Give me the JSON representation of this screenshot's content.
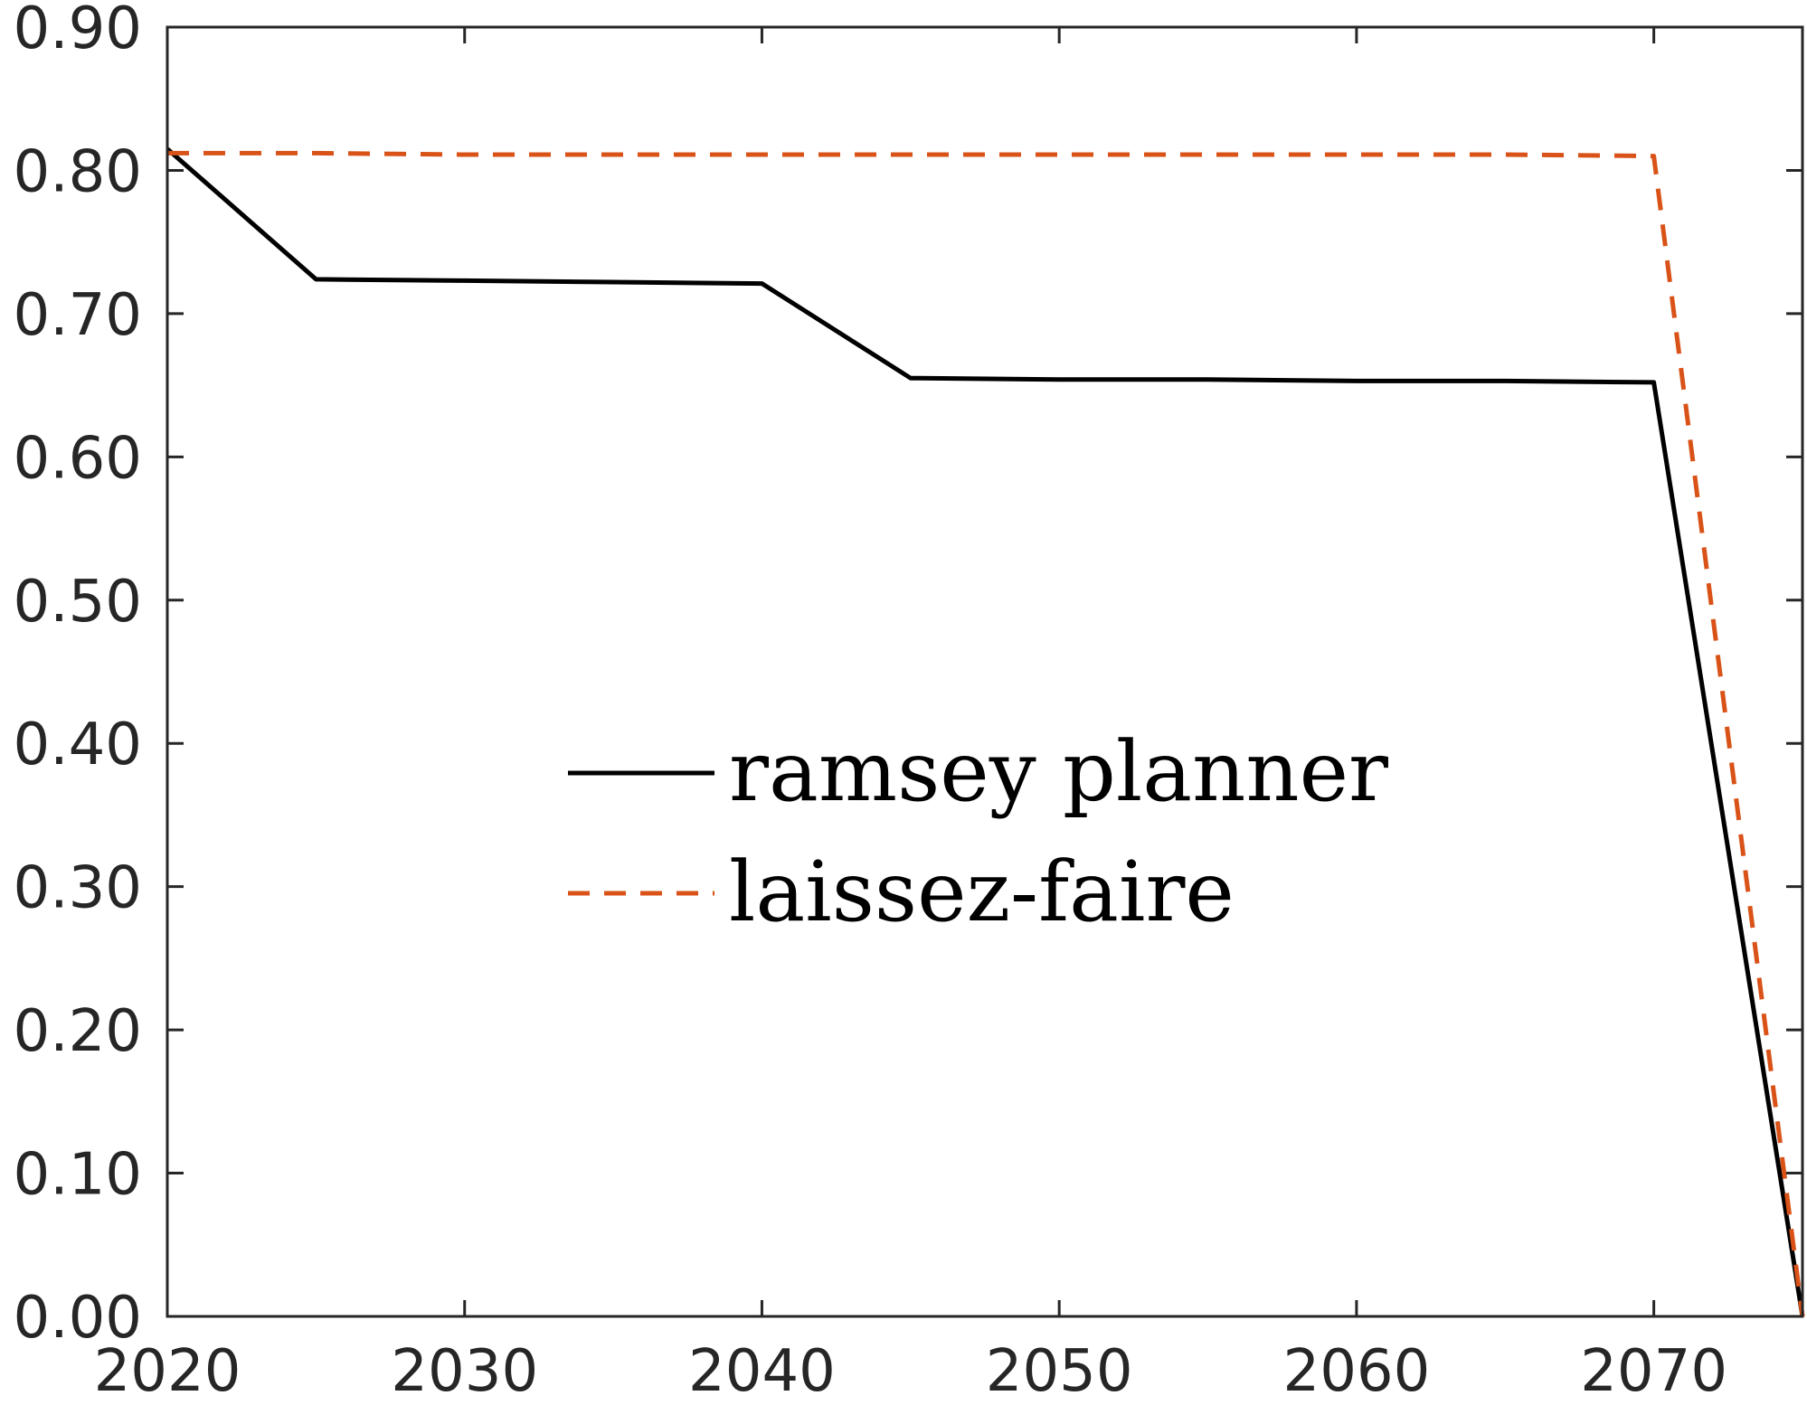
{
  "chart_data": {
    "type": "line",
    "title": "",
    "xlabel": "",
    "ylabel": "",
    "xlim": [
      2020,
      2075
    ],
    "ylim": [
      0,
      0.9
    ],
    "xticks": [
      2020,
      2030,
      2040,
      2050,
      2060,
      2070
    ],
    "xtick_labels": [
      "2020",
      "2030",
      "2040",
      "2050",
      "2060",
      "2070"
    ],
    "yticks": [
      0,
      0.1,
      0.2,
      0.3,
      0.4,
      0.5,
      0.6,
      0.7,
      0.8,
      0.9
    ],
    "ytick_labels": [
      "0.00",
      "0.10",
      "0.20",
      "0.30",
      "0.40",
      "0.50",
      "0.60",
      "0.70",
      "0.80",
      "0.90"
    ],
    "grid": false,
    "legend_position": "center",
    "series": [
      {
        "name": "ramsey planner",
        "color": "#000000",
        "style": "solid",
        "x": [
          2020,
          2025,
          2030,
          2035,
          2040,
          2045,
          2050,
          2055,
          2060,
          2065,
          2070,
          2075
        ],
        "y": [
          0.815,
          0.724,
          0.723,
          0.722,
          0.721,
          0.655,
          0.654,
          0.654,
          0.653,
          0.653,
          0.652,
          0.0
        ]
      },
      {
        "name": "laissez-faire",
        "color": "#D95319",
        "style": "dashed",
        "x": [
          2020,
          2025,
          2030,
          2035,
          2040,
          2045,
          2050,
          2055,
          2060,
          2065,
          2070,
          2075
        ],
        "y": [
          0.812,
          0.812,
          0.811,
          0.811,
          0.811,
          0.811,
          0.811,
          0.811,
          0.811,
          0.811,
          0.81,
          0.0
        ]
      }
    ]
  }
}
